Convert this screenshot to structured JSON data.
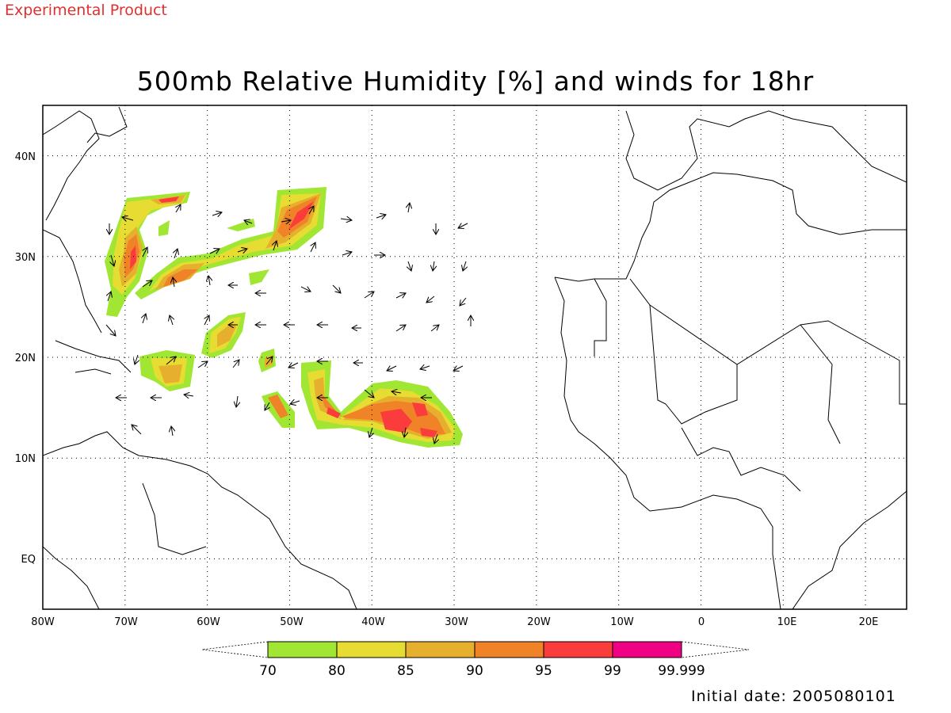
{
  "header": {
    "experimental_label": "Experimental Product",
    "title": "500mb Relative Humidity [%] and winds for 18hr"
  },
  "footer": {
    "initial_date": "Initial date: 2005080101"
  },
  "map": {
    "lon_range": [
      -80,
      25
    ],
    "lat_range": [
      -5,
      45
    ],
    "lon_ticks": [
      {
        "value": -80,
        "label": "80W"
      },
      {
        "value": -70,
        "label": "70W"
      },
      {
        "value": -60,
        "label": "60W"
      },
      {
        "value": -50,
        "label": "50W"
      },
      {
        "value": -40,
        "label": "40W"
      },
      {
        "value": -30,
        "label": "30W"
      },
      {
        "value": -20,
        "label": "20W"
      },
      {
        "value": -10,
        "label": "10W"
      },
      {
        "value": 0,
        "label": "0"
      },
      {
        "value": 10,
        "label": "10E"
      },
      {
        "value": 20,
        "label": "20E"
      }
    ],
    "lat_ticks": [
      {
        "value": 40,
        "label": "40N"
      },
      {
        "value": 30,
        "label": "30N"
      },
      {
        "value": 20,
        "label": "20N"
      },
      {
        "value": 10,
        "label": "10N"
      },
      {
        "value": 0,
        "label": "EQ"
      }
    ],
    "grid": true
  },
  "colorbar": {
    "levels": [
      "70",
      "80",
      "85",
      "90",
      "95",
      "99",
      "99.999"
    ],
    "colors": [
      "#a0e632",
      "#e6dc32",
      "#e6af2d",
      "#f08228",
      "#fa3c3c",
      "#f00082"
    ]
  },
  "humidity_colors": {
    "c70": "#a0e632",
    "c80": "#e6dc32",
    "c85": "#e6af2d",
    "c90": "#f08228",
    "c95": "#fa3c3c"
  }
}
